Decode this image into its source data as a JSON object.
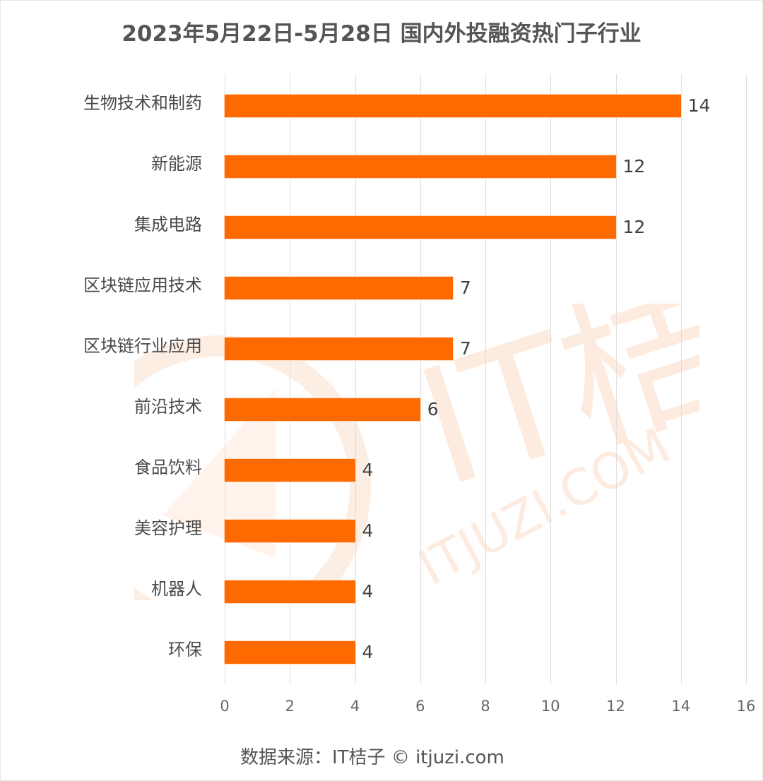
{
  "title": "2023年5月22日-5月28日 国内外投融资热门子行业",
  "source": "数据来源：IT桔子 © itjuzi.com",
  "watermark": {
    "brand": "IT桔子",
    "domain": "ITJUZI.COM"
  },
  "colors": {
    "bar": "#ff6a00",
    "grid": "#dedede",
    "text": "#4a4a4a"
  },
  "x_ticks": [
    "0",
    "2",
    "4",
    "6",
    "8",
    "10",
    "12",
    "14",
    "16"
  ],
  "bars": [
    {
      "label": "生物技术和制药",
      "value": 14,
      "value_label": "14"
    },
    {
      "label": "新能源",
      "value": 12,
      "value_label": "12"
    },
    {
      "label": "集成电路",
      "value": 12,
      "value_label": "12"
    },
    {
      "label": "区块链应用技术",
      "value": 7,
      "value_label": "7"
    },
    {
      "label": "区块链行业应用",
      "value": 7,
      "value_label": "7"
    },
    {
      "label": "前沿技术",
      "value": 6,
      "value_label": "6"
    },
    {
      "label": "食品饮料",
      "value": 4,
      "value_label": "4"
    },
    {
      "label": "美容护理",
      "value": 4,
      "value_label": "4"
    },
    {
      "label": "机器人",
      "value": 4,
      "value_label": "4"
    },
    {
      "label": "环保",
      "value": 4,
      "value_label": "4"
    }
  ],
  "chart_data": {
    "type": "bar",
    "orientation": "horizontal",
    "title": "2023年5月22日-5月28日 国内外投融资热门子行业",
    "categories": [
      "生物技术和制药",
      "新能源",
      "集成电路",
      "区块链应用技术",
      "区块链行业应用",
      "前沿技术",
      "食品饮料",
      "美容护理",
      "机器人",
      "环保"
    ],
    "values": [
      14,
      12,
      12,
      7,
      7,
      6,
      4,
      4,
      4,
      4
    ],
    "xlabel": "",
    "ylabel": "",
    "xlim": [
      0,
      16
    ],
    "x_ticks": [
      0,
      2,
      4,
      6,
      8,
      10,
      12,
      14,
      16
    ],
    "grid": true,
    "data_labels": true,
    "legend": null,
    "annotation": "数据来源：IT桔子 © itjuzi.com"
  }
}
